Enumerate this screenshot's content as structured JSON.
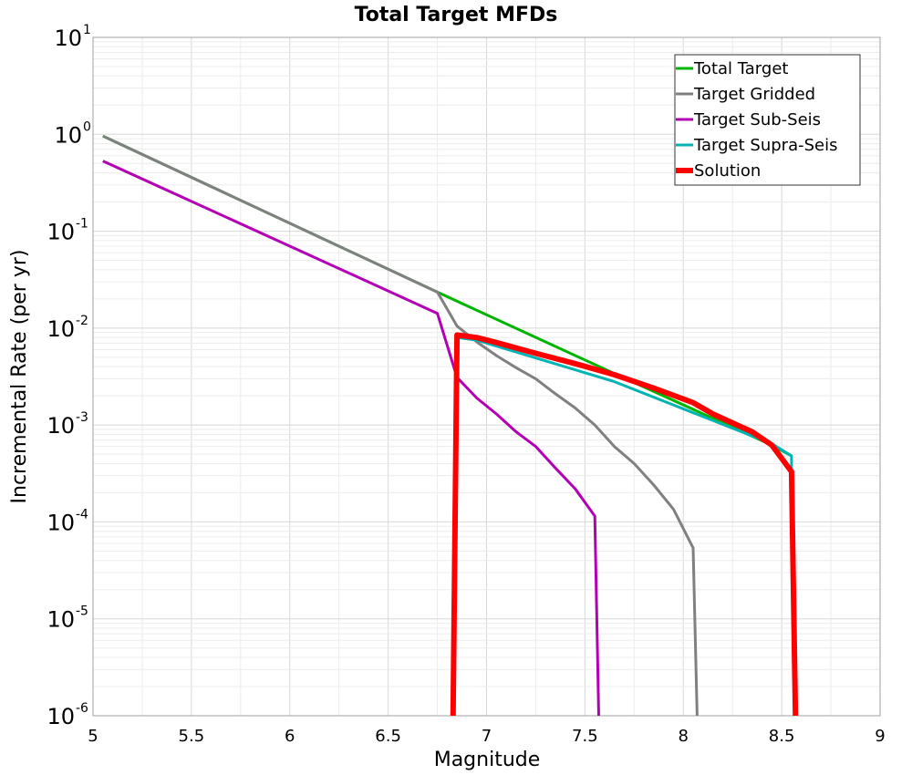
{
  "chart_data": {
    "type": "line",
    "title": "Total Target MFDs",
    "xlabel": "Magnitude",
    "ylabel": "Incremental Rate (per yr)",
    "xlim": [
      5,
      9
    ],
    "ylim": [
      1e-06,
      10
    ],
    "yscale": "log",
    "grid": true,
    "legend_position": "top-right",
    "x_ticks": [
      "5",
      "5.5",
      "6",
      "6.5",
      "7",
      "7.5",
      "8",
      "8.5",
      "9"
    ],
    "y_ticks": [
      {
        "base": "10",
        "exp": "1"
      },
      {
        "base": "10",
        "exp": "0"
      },
      {
        "base": "10",
        "exp": "-1"
      },
      {
        "base": "10",
        "exp": "-2"
      },
      {
        "base": "10",
        "exp": "-3"
      },
      {
        "base": "10",
        "exp": "-4"
      },
      {
        "base": "10",
        "exp": "-5"
      },
      {
        "base": "10",
        "exp": "-6"
      }
    ],
    "series": [
      {
        "name": "Total Target",
        "color": "#00b400",
        "width": 3,
        "x": [
          5.05,
          6.75,
          7.65,
          8.45,
          8.55
        ],
        "y": [
          0.96,
          0.0235,
          0.0034,
          0.00062,
          0.00048
        ]
      },
      {
        "name": "Target Gridded",
        "color": "#808080",
        "width": 3,
        "x": [
          5.05,
          6.75,
          6.85,
          6.95,
          7.05,
          7.15,
          7.25,
          7.35,
          7.45,
          7.55,
          7.65,
          7.75,
          7.85,
          7.95,
          8.05,
          8.07
        ],
        "y": [
          0.96,
          0.0235,
          0.0105,
          0.0072,
          0.0052,
          0.0039,
          0.003,
          0.0021,
          0.0015,
          0.001,
          0.0006,
          0.0004,
          0.00024,
          0.000135,
          5.4e-05,
          1e-06
        ]
      },
      {
        "name": "Target Sub-Seis",
        "color": "#b400b4",
        "width": 3,
        "x": [
          5.05,
          6.75,
          6.85,
          6.95,
          7.05,
          7.15,
          7.25,
          7.35,
          7.45,
          7.55,
          7.57
        ],
        "y": [
          0.53,
          0.0142,
          0.0031,
          0.0019,
          0.0013,
          0.00085,
          0.0006,
          0.00036,
          0.00022,
          0.000115,
          1e-06
        ]
      },
      {
        "name": "Target Supra-Seis",
        "color": "#00b4b4",
        "width": 3,
        "x": [
          6.85,
          6.95,
          7.65,
          8.45,
          8.55,
          8.55
        ],
        "y": [
          0.008,
          0.0075,
          0.0028,
          0.00064,
          0.00048,
          0.00034
        ]
      },
      {
        "name": "Solution",
        "color": "#ff0000",
        "width": 6,
        "x": [
          6.83,
          6.85,
          6.95,
          7.05,
          7.25,
          7.45,
          7.65,
          7.85,
          8.05,
          8.15,
          8.25,
          8.35,
          8.45,
          8.55,
          8.57
        ],
        "y": [
          1e-06,
          0.0085,
          0.008,
          0.0071,
          0.0055,
          0.0043,
          0.0033,
          0.0024,
          0.0017,
          0.0013,
          0.00105,
          0.00085,
          0.00062,
          0.00033,
          1e-06
        ]
      }
    ]
  }
}
